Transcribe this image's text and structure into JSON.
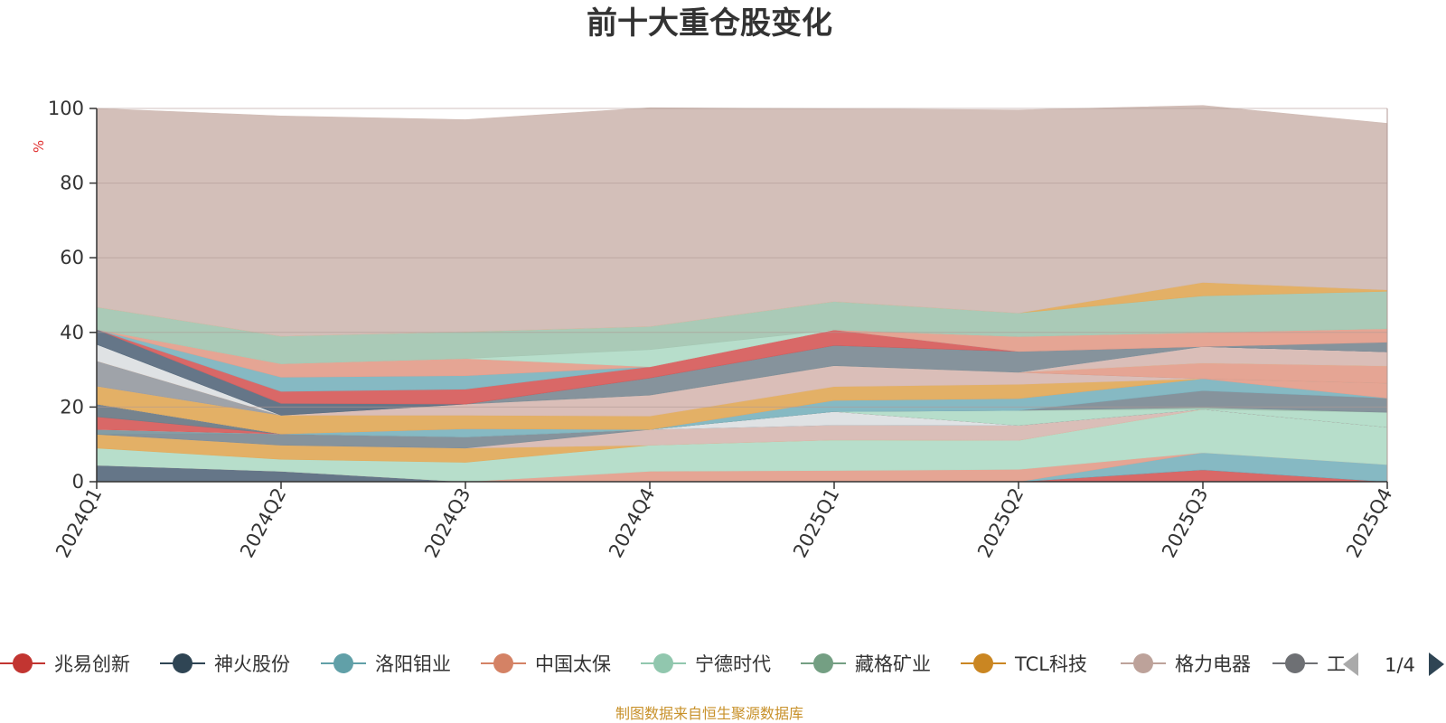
{
  "chart_data": {
    "type": "area",
    "stacked": true,
    "title": "前十大重仓股变化",
    "ylabel": "%",
    "ylim": [
      0,
      100
    ],
    "yticks": [
      0,
      20,
      40,
      60,
      80,
      100
    ],
    "categories": [
      "2024Q1",
      "2024Q2",
      "2024Q3",
      "2024Q4",
      "2025Q1",
      "2025Q2",
      "2025Q3",
      "2025Q4"
    ],
    "grid": true,
    "series": [
      {
        "color": "#d7605f",
        "values": [
          0,
          0,
          0,
          0,
          0,
          0,
          3.2,
          0
        ]
      },
      {
        "color": "#5d6f82",
        "values": [
          4.4,
          2.8,
          0,
          0,
          0,
          0,
          0,
          0
        ]
      },
      {
        "color": "#7fb5c0",
        "values": [
          0,
          0,
          0,
          0,
          0,
          0,
          4.6,
          4.6
        ]
      },
      {
        "color": "#e4a08e",
        "values": [
          0,
          0,
          0,
          2.8,
          3.0,
          3.3,
          0,
          0
        ]
      },
      {
        "color": "#b3dcc8",
        "values": [
          4.6,
          3.2,
          5.2,
          7.0,
          8.2,
          7.8,
          11.6,
          10.0
        ]
      },
      {
        "color": "#e2ac5e",
        "values": [
          3.7,
          3.8,
          3.8,
          0,
          0,
          0,
          0,
          0
        ]
      },
      {
        "color": "#d8bbb4",
        "values": [
          0,
          0,
          0,
          4.2,
          4.0,
          4.0,
          0,
          0
        ]
      },
      {
        "color": "#7f8d97",
        "values": [
          0,
          3.0,
          3.0,
          0,
          0,
          0,
          0,
          0
        ]
      },
      {
        "color": "#7d98a0",
        "values": [
          1.3,
          0,
          0,
          0,
          0,
          0,
          0,
          0
        ]
      },
      {
        "color": "#dde0e3",
        "values": [
          0,
          0,
          0,
          0,
          3.6,
          0,
          0,
          0
        ]
      },
      {
        "color": "#d7605f",
        "values": [
          3.4,
          0,
          0,
          0,
          0,
          0,
          0,
          0
        ]
      },
      {
        "color": "#6f7c88",
        "values": [
          3.4,
          0,
          0,
          0,
          0,
          0,
          0,
          0
        ]
      },
      {
        "color": "#b3dcc8",
        "values": [
          0,
          0,
          0,
          0,
          0,
          4.0,
          0,
          4.0
        ]
      },
      {
        "color": "#a5c7b3",
        "values": [
          0,
          0,
          0,
          0,
          0,
          0,
          0.5,
          0
        ]
      },
      {
        "color": "#7f8d97",
        "values": [
          0,
          0,
          0,
          0,
          0,
          0,
          4.5,
          3.8
        ]
      },
      {
        "color": "#7fb5c0",
        "values": [
          0,
          0,
          2.2,
          0,
          3.0,
          3.2,
          3.2,
          0
        ]
      },
      {
        "color": "#e4a08e",
        "values": [
          0,
          0,
          0,
          0,
          0,
          0,
          0,
          4.0
        ]
      },
      {
        "color": "#e2ac5e",
        "values": [
          4.8,
          5.0,
          3.6,
          3.6,
          3.7,
          3.8,
          0,
          0
        ]
      },
      {
        "color": "#d8bbb4",
        "values": [
          0,
          0,
          3.0,
          5.6,
          5.6,
          3.2,
          0,
          0
        ]
      },
      {
        "color": "#9a9ea4",
        "values": [
          6.8,
          0,
          0,
          0,
          0,
          0,
          0,
          0
        ]
      },
      {
        "color": "#e4a08e",
        "values": [
          0,
          0,
          0,
          0,
          0,
          0,
          4.2,
          4.6
        ]
      },
      {
        "color": "#e2ac5e",
        "values": [
          0,
          0,
          0,
          0,
          0,
          0,
          0,
          0
        ]
      },
      {
        "color": "#d8bbb4",
        "values": [
          0,
          0,
          0,
          0,
          0,
          0,
          4.4,
          3.8
        ]
      },
      {
        "color": "#dde0e3",
        "values": [
          4.4,
          0,
          0,
          0,
          0,
          0,
          0,
          0
        ]
      },
      {
        "color": "#7f8d97",
        "values": [
          0,
          0,
          0,
          4.6,
          5.4,
          5.6,
          0,
          0
        ]
      },
      {
        "color": "#5d6f82",
        "values": [
          4.0,
          3.2,
          0,
          0,
          0,
          0,
          0,
          0
        ]
      },
      {
        "color": "#7f8d97",
        "values": [
          0,
          0,
          0,
          0,
          0,
          0,
          0,
          2.6
        ]
      },
      {
        "color": "#d7605f",
        "values": [
          0,
          3.2,
          4.0,
          3.0,
          4.2,
          0,
          0,
          0
        ]
      },
      {
        "color": "#7fb5c0",
        "values": [
          0,
          3.8,
          3.6,
          0,
          0,
          0,
          0,
          0
        ]
      },
      {
        "color": "#e4a08e",
        "values": [
          0,
          3.6,
          4.6,
          0,
          0,
          4.0,
          3.8,
          3.6
        ]
      },
      {
        "color": "#b3dcc8",
        "values": [
          0,
          0,
          0,
          4.6,
          0,
          0,
          0,
          0
        ]
      },
      {
        "color": "#a5c7b3",
        "values": [
          6.0,
          7.4,
          7.2,
          6.2,
          7.6,
          6.3,
          9.8,
          10.0
        ]
      },
      {
        "color": "#e2ac5e",
        "values": [
          0,
          0,
          0,
          0,
          0,
          0,
          3.6,
          0.4
        ]
      },
      {
        "color": "#d1bcb5",
        "values": [
          53.2,
          59.0,
          56.8,
          58.6,
          51.6,
          54.4,
          47.4,
          44.6
        ]
      }
    ],
    "legend": {
      "position": "bottom",
      "items": [
        {
          "label": "兆易创新",
          "color": "#c23531"
        },
        {
          "label": "神火股份",
          "color": "#2f4554"
        },
        {
          "label": "洛阳钼业",
          "color": "#61a0a8"
        },
        {
          "label": "中国太保",
          "color": "#d48265"
        },
        {
          "label": "宁德时代",
          "color": "#91c7ae"
        },
        {
          "label": "藏格矿业",
          "color": "#749f83"
        },
        {
          "label": "TCL科技",
          "color": "#ca8622"
        },
        {
          "label": "格力电器",
          "color": "#bda29a"
        },
        {
          "label": "工",
          "color": "#6e7074"
        }
      ],
      "page": "1/4"
    },
    "source": "制图数据来自恒生聚源数据库"
  }
}
